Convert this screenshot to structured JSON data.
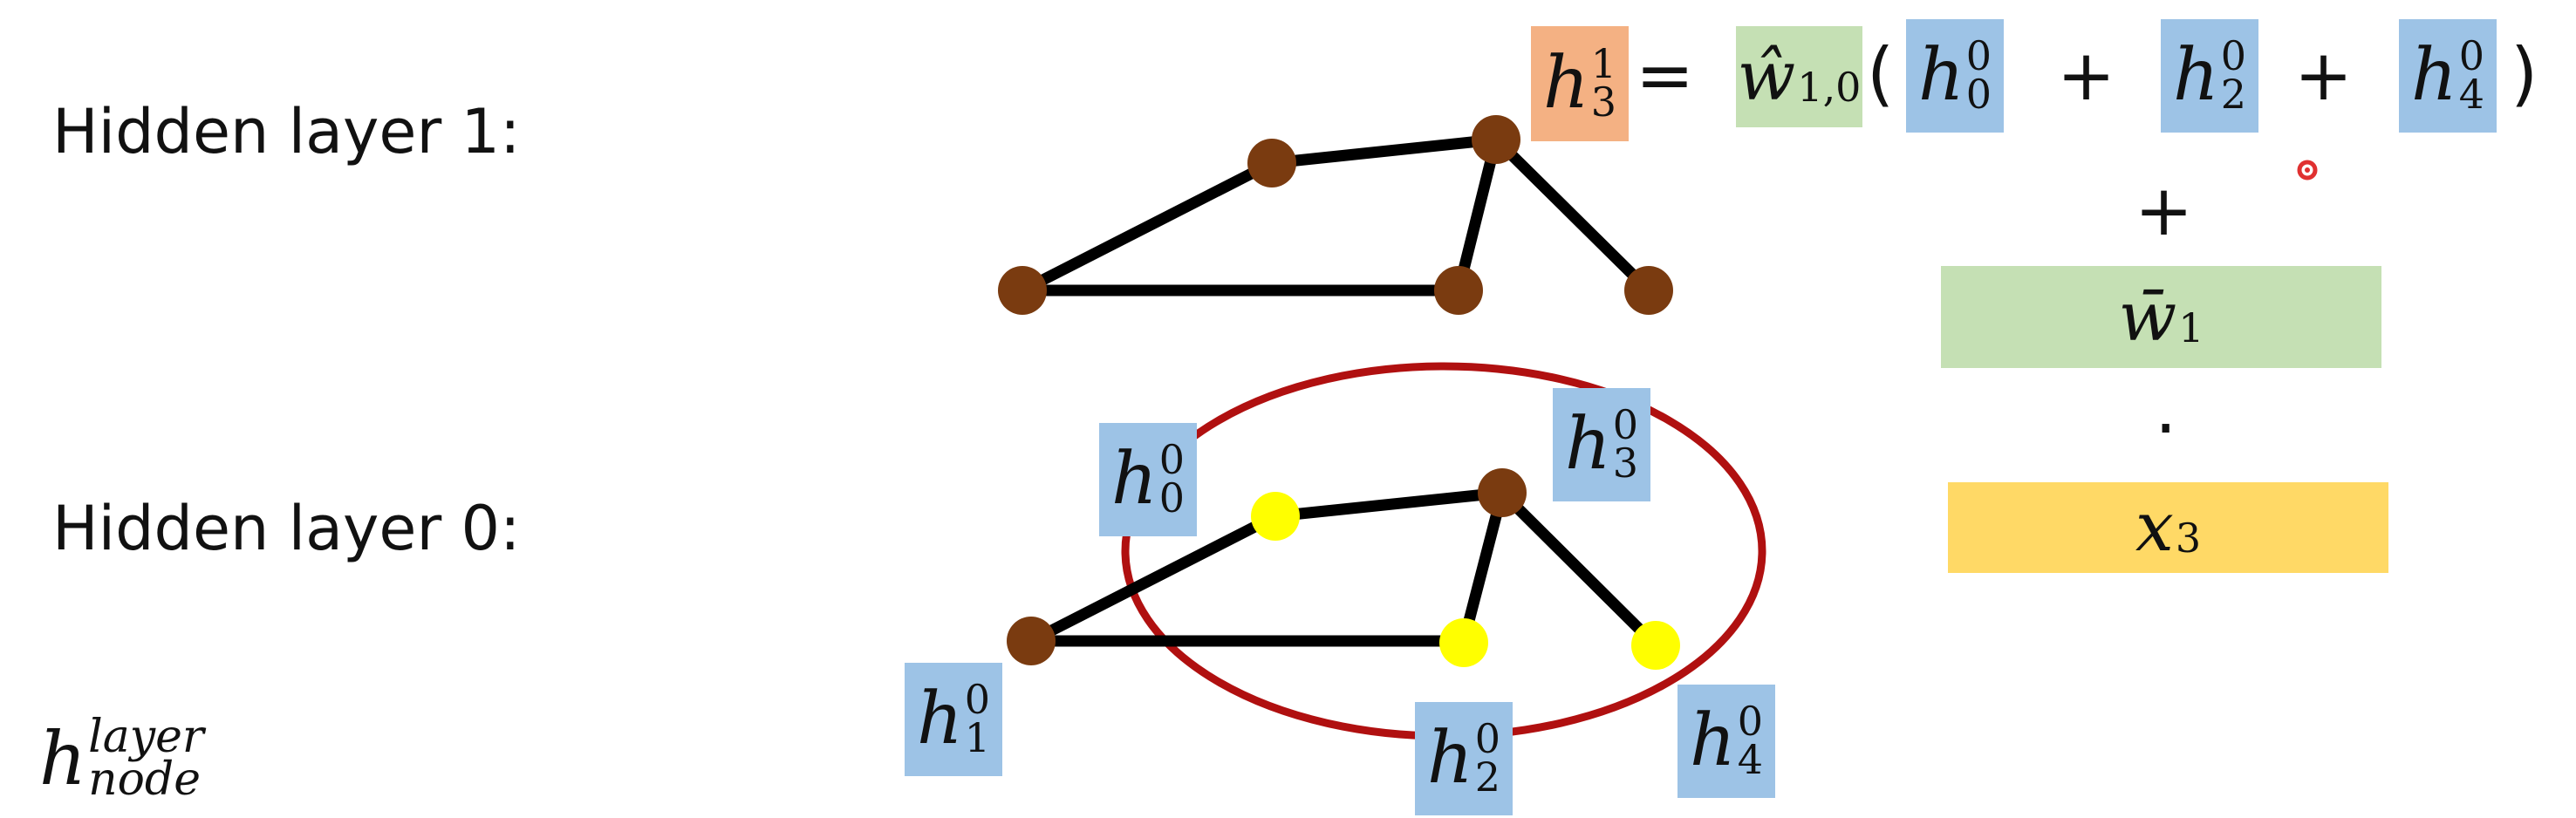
{
  "labels": {
    "layer1": "Hidden layer 1:",
    "layer0": "Hidden layer 0:"
  },
  "notation": {
    "base": "h",
    "sup": "layer",
    "sub": "node"
  },
  "equation": {
    "lhs": {
      "base": "h",
      "sup": "1",
      "sub": "3"
    },
    "equals": "=",
    "weight": {
      "base": "ŵ",
      "sub": "1,0"
    },
    "open": "(",
    "terms": [
      {
        "base": "h",
        "sup": "0",
        "sub": "0"
      },
      {
        "base": "h",
        "sup": "0",
        "sub": "2"
      },
      {
        "base": "h",
        "sup": "0",
        "sub": "4"
      }
    ],
    "plus": "+",
    "close": ")",
    "plus2": "+",
    "bias_weight": {
      "base": "w̄",
      "sub": "1"
    },
    "dot": "·",
    "input": {
      "base": "x",
      "sub": "3"
    }
  },
  "node_labels": [
    {
      "base": "h",
      "sup": "0",
      "sub": "0"
    },
    {
      "base": "h",
      "sup": "0",
      "sub": "3"
    },
    {
      "base": "h",
      "sup": "0",
      "sub": "1"
    },
    {
      "base": "h",
      "sup": "0",
      "sub": "2"
    },
    {
      "base": "h",
      "sup": "0",
      "sub": "4"
    }
  ],
  "colors": {
    "node": "#7a3b10",
    "edge": "#000000",
    "highlight": "#ffff00",
    "ellipse": "#b01010",
    "blue_box": "#9dc3e6",
    "green_box": "#c5e0b4",
    "orange_box": "#f4b183",
    "yellow_box": "#ffd966"
  }
}
